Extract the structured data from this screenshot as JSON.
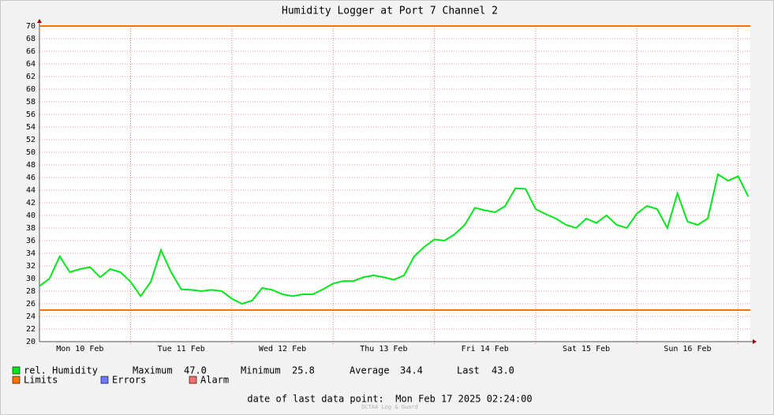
{
  "chart_data": {
    "type": "line",
    "title": "Humidity Logger at Port 7 Channel 2",
    "xlim": [
      0.1,
      7.12
    ],
    "xticks": [
      {
        "value": 0.5,
        "label": "Mon 10 Feb"
      },
      {
        "value": 1.5,
        "label": "Tue 11 Feb"
      },
      {
        "value": 2.5,
        "label": "Wed 12 Feb"
      },
      {
        "value": 3.5,
        "label": "Thu 13 Feb"
      },
      {
        "value": 4.5,
        "label": "Fri 14 Feb"
      },
      {
        "value": 5.5,
        "label": "Sat 15 Feb"
      },
      {
        "value": 6.5,
        "label": "Sun 16 Feb"
      }
    ],
    "xgridlines": [
      1,
      2,
      3,
      4,
      5,
      6,
      7
    ],
    "ylim": [
      20,
      70
    ],
    "yticks": [
      20,
      22,
      24,
      26,
      28,
      30,
      32,
      34,
      36,
      38,
      40,
      42,
      44,
      46,
      48,
      50,
      52,
      54,
      56,
      58,
      60,
      62,
      64,
      66,
      68,
      70
    ],
    "grid": true,
    "series": [
      {
        "name": "rel. Humidity",
        "color": "#00e81c",
        "x": [
          0.1,
          0.2,
          0.3,
          0.4,
          0.5,
          0.6,
          0.7,
          0.8,
          0.9,
          1.0,
          1.1,
          1.2,
          1.3,
          1.4,
          1.5,
          1.6,
          1.7,
          1.8,
          1.9,
          2.0,
          2.1,
          2.2,
          2.3,
          2.4,
          2.5,
          2.6,
          2.7,
          2.8,
          2.9,
          3.0,
          3.1,
          3.2,
          3.3,
          3.4,
          3.5,
          3.6,
          3.7,
          3.8,
          3.9,
          4.0,
          4.1,
          4.2,
          4.3,
          4.4,
          4.5,
          4.6,
          4.7,
          4.8,
          4.9,
          5.0,
          5.1,
          5.2,
          5.3,
          5.4,
          5.5,
          5.6,
          5.7,
          5.8,
          5.9,
          6.0,
          6.1,
          6.2,
          6.3,
          6.4,
          6.5,
          6.6,
          6.7,
          6.8,
          6.9,
          7.0,
          7.1
        ],
        "values": [
          28.8,
          30.0,
          33.5,
          31,
          31.5,
          31.8,
          30.2,
          31.5,
          31.0,
          29.5,
          27.2,
          29.5,
          34.5,
          31,
          28.3,
          28.2,
          28,
          28.2,
          28,
          26.8,
          26,
          26.5,
          28.5,
          28.2,
          27.5,
          27.2,
          27.5,
          27.5,
          28.3,
          29.2,
          29.6,
          29.6,
          30.2,
          30.5,
          30.2,
          29.8,
          30.5,
          33.5,
          35,
          36.2,
          36,
          37,
          38.5,
          41.2,
          40.8,
          40.5,
          41.5,
          44.3,
          44.2,
          41,
          40.2,
          39.5,
          38.5,
          38,
          39.5,
          38.8,
          40,
          38.5,
          38,
          40.3,
          41.5,
          41,
          38,
          43.5,
          39,
          38.5,
          39.5,
          46.5,
          45.5,
          46.2,
          43
        ]
      }
    ],
    "limits": {
      "name": "Limits",
      "color": "#ff7200",
      "values": [
        70,
        25
      ]
    },
    "legend_extra": [
      {
        "name": "Errors",
        "color": "#6b7bff"
      },
      {
        "name": "Alarm",
        "color": "#f07070"
      }
    ],
    "stats": [
      {
        "name": "Maximum",
        "value": 47,
        "label": "47.0"
      },
      {
        "name": "Minimum",
        "value": 25.8,
        "label": "25.8"
      },
      {
        "name": "Average",
        "value": 34.4,
        "label": "34.4"
      },
      {
        "name": "Last",
        "value": 43,
        "label": "43.0"
      }
    ],
    "footer": "date of last data point:  Mon Feb 17 2025 02:24:00",
    "watermark": "OCTA4 Log & Guard"
  }
}
